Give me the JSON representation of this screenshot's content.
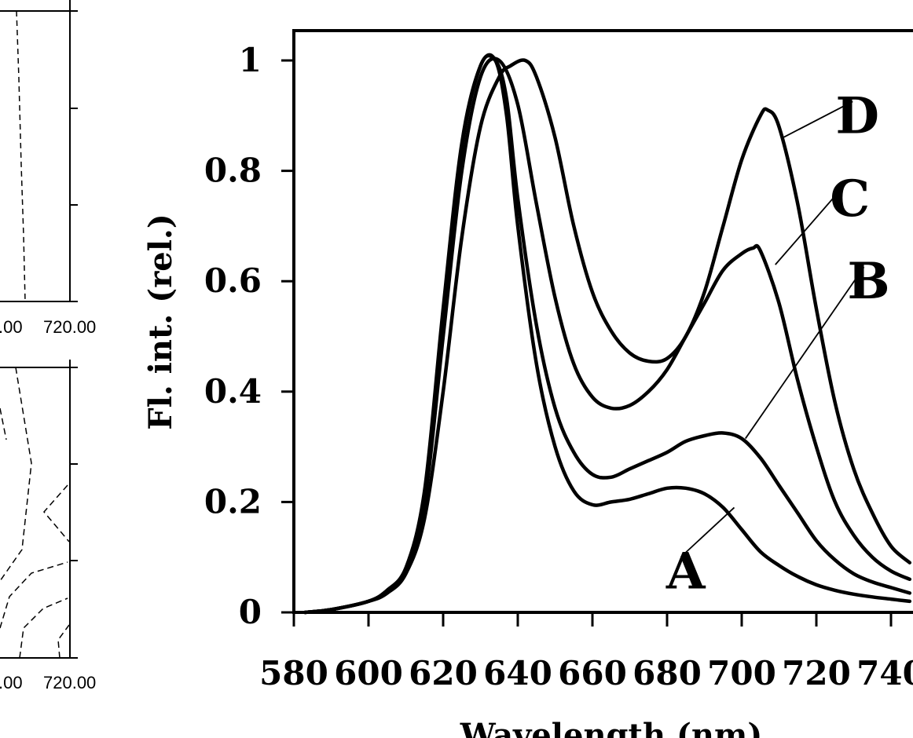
{
  "chart_data": [
    {
      "type": "line",
      "title": "",
      "xlabel": "Wavelength (nm)",
      "ylabel": "Fl. int. (rel.)",
      "xlim": [
        578,
        745
      ],
      "ylim": [
        0,
        1.05
      ],
      "x_ticks": [
        580,
        600,
        620,
        640,
        660,
        680,
        700,
        720,
        740
      ],
      "x_tick_labels": [
        "580",
        "600",
        "620",
        "640",
        "660",
        "680",
        "700",
        "720",
        "740"
      ],
      "y_ticks": [
        0,
        0.2,
        0.4,
        0.6,
        0.8,
        1
      ],
      "y_tick_labels": [
        "0",
        "0.2",
        "0.4",
        "0.6",
        "0.8",
        "1"
      ],
      "grid": false,
      "legend": "none",
      "series": [
        {
          "name": "A",
          "x": [
            583,
            590,
            600,
            605,
            610,
            615,
            620,
            625,
            630,
            634,
            637,
            640,
            645,
            650,
            655,
            660,
            665,
            670,
            675,
            680,
            685,
            690,
            695,
            700,
            705,
            710,
            715,
            720,
            725,
            730,
            735,
            740,
            745
          ],
          "y": [
            0,
            0.005,
            0.02,
            0.04,
            0.08,
            0.22,
            0.55,
            0.85,
            0.99,
            1.0,
            0.9,
            0.7,
            0.45,
            0.3,
            0.22,
            0.195,
            0.2,
            0.205,
            0.215,
            0.225,
            0.225,
            0.215,
            0.19,
            0.15,
            0.11,
            0.085,
            0.065,
            0.05,
            0.04,
            0.033,
            0.028,
            0.024,
            0.02
          ]
        },
        {
          "name": "B",
          "x": [
            583,
            590,
            600,
            605,
            610,
            615,
            620,
            625,
            630,
            634,
            637,
            640,
            645,
            650,
            655,
            660,
            665,
            670,
            675,
            680,
            685,
            690,
            695,
            700,
            705,
            710,
            715,
            720,
            725,
            730,
            735,
            740,
            745
          ],
          "y": [
            0,
            0.005,
            0.02,
            0.04,
            0.08,
            0.21,
            0.53,
            0.84,
            0.99,
            1.0,
            0.93,
            0.75,
            0.52,
            0.37,
            0.29,
            0.25,
            0.245,
            0.26,
            0.275,
            0.29,
            0.31,
            0.32,
            0.325,
            0.315,
            0.28,
            0.23,
            0.18,
            0.13,
            0.095,
            0.07,
            0.055,
            0.045,
            0.035
          ]
        },
        {
          "name": "C",
          "x": [
            583,
            590,
            600,
            605,
            610,
            615,
            620,
            625,
            630,
            635,
            640,
            645,
            650,
            655,
            660,
            665,
            670,
            675,
            680,
            685,
            690,
            695,
            700,
            703,
            705,
            710,
            715,
            720,
            725,
            730,
            735,
            740,
            745
          ],
          "y": [
            0,
            0.005,
            0.02,
            0.04,
            0.08,
            0.2,
            0.5,
            0.8,
            0.97,
            1.0,
            0.92,
            0.74,
            0.57,
            0.45,
            0.39,
            0.37,
            0.375,
            0.4,
            0.44,
            0.5,
            0.56,
            0.62,
            0.65,
            0.66,
            0.655,
            0.56,
            0.42,
            0.3,
            0.2,
            0.14,
            0.1,
            0.075,
            0.06
          ]
        },
        {
          "name": "D",
          "x": [
            583,
            590,
            600,
            605,
            610,
            615,
            620,
            625,
            630,
            635,
            638,
            642,
            645,
            650,
            655,
            660,
            665,
            670,
            675,
            680,
            685,
            690,
            695,
            700,
            705,
            707,
            710,
            715,
            720,
            725,
            730,
            735,
            740,
            745
          ],
          "y": [
            0,
            0.005,
            0.02,
            0.035,
            0.07,
            0.17,
            0.4,
            0.68,
            0.88,
            0.97,
            0.99,
            1.0,
            0.97,
            0.86,
            0.7,
            0.58,
            0.51,
            0.47,
            0.455,
            0.46,
            0.5,
            0.58,
            0.7,
            0.82,
            0.9,
            0.91,
            0.88,
            0.74,
            0.55,
            0.38,
            0.26,
            0.18,
            0.12,
            0.09
          ]
        }
      ],
      "annotations": [
        {
          "text": "A",
          "x": 685,
          "y": 0.075,
          "leader_to": [
            698,
            0.19
          ]
        },
        {
          "text": "B",
          "x": 734,
          "y": 0.6,
          "leader_to": [
            701,
            0.315
          ]
        },
        {
          "text": "C",
          "x": 729,
          "y": 0.75,
          "leader_to": [
            709,
            0.63
          ]
        },
        {
          "text": "D",
          "x": 731,
          "y": 0.9,
          "leader_to": [
            711,
            0.86
          ]
        }
      ]
    },
    {
      "type": "line",
      "title": "",
      "partial": true,
      "x_tick_labels": [
        ".00",
        "720.00"
      ]
    },
    {
      "type": "line",
      "title": "",
      "partial": true,
      "x_tick_labels": [
        ".00",
        "720.00"
      ]
    }
  ]
}
